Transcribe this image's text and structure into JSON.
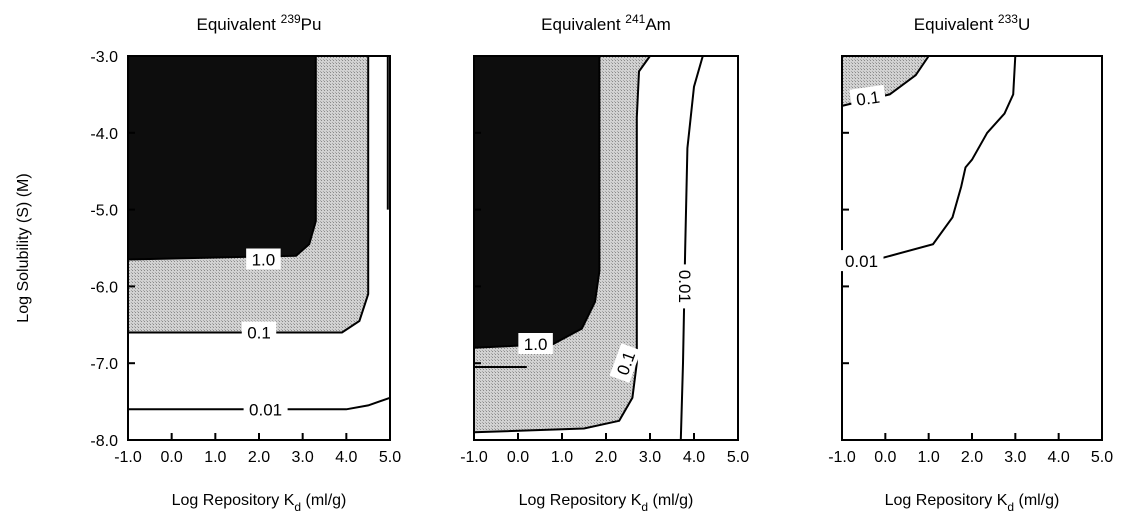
{
  "chart_data": [
    {
      "type": "contour",
      "title": "Equivalent",
      "title_sup": "239",
      "title_suffix": "Pu",
      "xlabel": "Log Repository K",
      "xlabel_sub": "d",
      "xlabel_suffix": " (ml/g)",
      "ylabel": "Log Solubility (S) (M)",
      "xlim": [
        -1.0,
        5.0
      ],
      "ylim": [
        -8.0,
        -3.0
      ],
      "x_ticks": [
        -1,
        0,
        1,
        2,
        3,
        4,
        5
      ],
      "x_tick_labels": [
        "-1.0",
        "0.0",
        "1.0",
        "2.0",
        "3.0",
        "4.0",
        "5.0"
      ],
      "y_ticks": [
        -3,
        -4,
        -5,
        -6,
        -7,
        -8
      ],
      "y_tick_labels": [
        "-3.0",
        "-4.0",
        "-5.0",
        "-6.0",
        "-7.0",
        "-8.0"
      ],
      "regions": [
        {
          "level": "0.1-1.0",
          "fill": "#c4c4c4",
          "points": [
            [
              -1.0,
              -3.0
            ],
            [
              4.5,
              -3.0
            ],
            [
              4.5,
              -6.1
            ],
            [
              4.3,
              -6.45
            ],
            [
              3.9,
              -6.6
            ],
            [
              -1.0,
              -6.6
            ]
          ]
        },
        {
          "level": ">1.0",
          "fill": "#0d0d0d",
          "points": [
            [
              -1.0,
              -3.0
            ],
            [
              3.3,
              -3.0
            ],
            [
              3.3,
              -5.15
            ],
            [
              3.15,
              -5.45
            ],
            [
              2.85,
              -5.6
            ],
            [
              -1.0,
              -5.65
            ]
          ]
        }
      ],
      "contours": [
        {
          "level": "1.0",
          "points": [
            [
              -1.0,
              -5.65
            ],
            [
              2.85,
              -5.6
            ],
            [
              3.15,
              -5.45
            ],
            [
              3.3,
              -5.15
            ],
            [
              3.3,
              -3.0
            ]
          ]
        },
        {
          "level": "0.1",
          "points": [
            [
              -1.0,
              -6.6
            ],
            [
              3.9,
              -6.6
            ],
            [
              4.3,
              -6.45
            ],
            [
              4.5,
              -6.1
            ],
            [
              4.5,
              -3.0
            ]
          ]
        },
        {
          "level": "0.01",
          "points": [
            [
              -1.0,
              -7.6
            ],
            [
              4.0,
              -7.6
            ],
            [
              4.5,
              -7.55
            ],
            [
              5.0,
              -7.45
            ]
          ]
        },
        {
          "level": "",
          "points": [
            [
              4.95,
              -3.0
            ],
            [
              4.95,
              -5.0
            ]
          ]
        }
      ],
      "contour_labels": [
        {
          "text": "1.0",
          "x": 2.1,
          "y": -5.65
        },
        {
          "text": "0.1",
          "x": 2.0,
          "y": -6.6
        },
        {
          "text": "0.01",
          "x": 2.15,
          "y": -7.6
        }
      ]
    },
    {
      "type": "contour",
      "title": "Equivalent",
      "title_sup": "241",
      "title_suffix": "Am",
      "xlabel": "Log Repository K",
      "xlabel_sub": "d",
      "xlabel_suffix": " (ml/g)",
      "xlim": [
        -1.0,
        5.0
      ],
      "ylim": [
        -8.0,
        -3.0
      ],
      "x_ticks": [
        -1,
        0,
        1,
        2,
        3,
        4,
        5
      ],
      "x_tick_labels": [
        "-1.0",
        "0.0",
        "1.0",
        "2.0",
        "3.0",
        "4.0",
        "5.0"
      ],
      "regions": [
        {
          "level": "0.1-1.0",
          "fill": "#c4c4c4",
          "points": [
            [
              -1.0,
              -3.0
            ],
            [
              3.0,
              -3.0
            ],
            [
              2.75,
              -3.2
            ],
            [
              2.7,
              -3.8
            ],
            [
              2.7,
              -7.0
            ],
            [
              2.6,
              -7.45
            ],
            [
              2.3,
              -7.75
            ],
            [
              1.5,
              -7.85
            ],
            [
              -1.0,
              -7.9
            ]
          ]
        },
        {
          "level": ">1.0",
          "fill": "#0d0d0d",
          "points": [
            [
              -1.0,
              -3.0
            ],
            [
              1.85,
              -3.0
            ],
            [
              1.85,
              -5.8
            ],
            [
              1.75,
              -6.2
            ],
            [
              1.45,
              -6.55
            ],
            [
              0.8,
              -6.75
            ],
            [
              -1.0,
              -6.8
            ]
          ]
        }
      ],
      "contours": [
        {
          "level": "1.0",
          "points": [
            [
              -1.0,
              -6.8
            ],
            [
              0.8,
              -6.75
            ],
            [
              1.45,
              -6.55
            ],
            [
              1.75,
              -6.2
            ],
            [
              1.85,
              -5.8
            ],
            [
              1.85,
              -3.0
            ]
          ]
        },
        {
          "level": "0.1",
          "points": [
            [
              3.0,
              -3.0
            ],
            [
              2.75,
              -3.2
            ],
            [
              2.7,
              -3.8
            ],
            [
              2.7,
              -7.0
            ],
            [
              2.6,
              -7.45
            ],
            [
              2.3,
              -7.75
            ],
            [
              1.5,
              -7.85
            ],
            [
              -1.0,
              -7.9
            ]
          ]
        },
        {
          "level": "0.01",
          "points": [
            [
              4.2,
              -3.0
            ],
            [
              4.0,
              -3.4
            ],
            [
              3.85,
              -4.2
            ],
            [
              3.8,
              -5.5
            ],
            [
              3.75,
              -7.0
            ],
            [
              3.7,
              -8.0
            ]
          ]
        },
        {
          "level": "",
          "points": [
            [
              -1.0,
              -7.05
            ],
            [
              0.2,
              -7.05
            ]
          ]
        }
      ],
      "contour_labels": [
        {
          "text": "1.0",
          "x": 0.4,
          "y": -6.75,
          "rotate": 0
        },
        {
          "text": "0.1",
          "x": 2.45,
          "y": -7.0,
          "rotate": -70
        },
        {
          "text": "0.01",
          "x": 3.8,
          "y": -6.0,
          "rotate": 90
        }
      ]
    },
    {
      "type": "contour",
      "title": "Equivalent",
      "title_sup": "233",
      "title_suffix": "U",
      "xlabel": "Log Repository K",
      "xlabel_sub": "d",
      "xlabel_suffix": " (ml/g)",
      "xlim": [
        -1.0,
        5.0
      ],
      "ylim": [
        -8.0,
        -3.0
      ],
      "x_ticks": [
        -1,
        0,
        1,
        2,
        3,
        4,
        5
      ],
      "x_tick_labels": [
        "-1.0",
        "0.0",
        "1.0",
        "2.0",
        "3.0",
        "4.0",
        "5.0"
      ],
      "regions": [
        {
          "level": "0.1-1.0",
          "fill": "#c4c4c4",
          "points": [
            [
              -1.0,
              -3.0
            ],
            [
              1.0,
              -3.0
            ],
            [
              0.7,
              -3.25
            ],
            [
              0.1,
              -3.5
            ],
            [
              -1.0,
              -3.65
            ]
          ]
        }
      ],
      "contours": [
        {
          "level": "0.1",
          "points": [
            [
              -1.0,
              -3.65
            ],
            [
              0.1,
              -3.5
            ],
            [
              0.7,
              -3.25
            ],
            [
              1.0,
              -3.0
            ]
          ]
        },
        {
          "level": "0.01",
          "points": [
            [
              -1.0,
              -5.7
            ],
            [
              -0.2,
              -5.65
            ],
            [
              1.1,
              -5.45
            ],
            [
              1.55,
              -5.1
            ],
            [
              1.75,
              -4.7
            ],
            [
              1.85,
              -4.45
            ],
            [
              2.0,
              -4.35
            ],
            [
              2.35,
              -4.0
            ],
            [
              2.75,
              -3.75
            ],
            [
              2.95,
              -3.5
            ],
            [
              3.0,
              -3.0
            ]
          ]
        }
      ],
      "contour_labels": [
        {
          "text": "0.1",
          "x": -0.4,
          "y": -3.55,
          "rotate": -8
        },
        {
          "text": "0.01",
          "x": -0.55,
          "y": -5.67,
          "rotate": 0
        }
      ]
    }
  ],
  "colors": {
    "dark": "#0d0d0d",
    "medium": "#c4c4c4",
    "line": "#000000",
    "background": "#ffffff"
  }
}
